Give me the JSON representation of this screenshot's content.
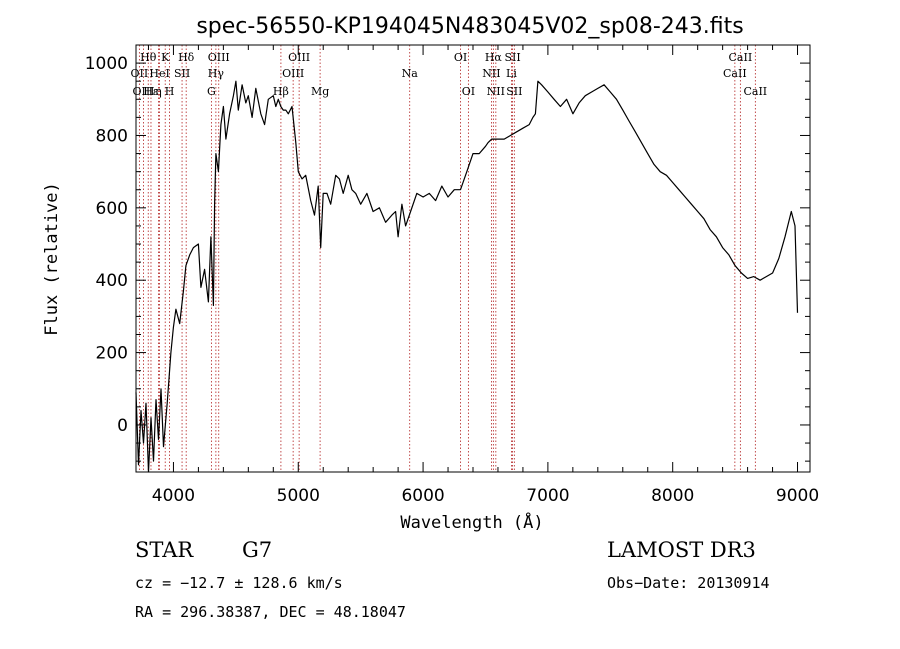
{
  "chart_data": {
    "type": "line",
    "title": "spec-56550-KP194045N483045V02_sp08-243.fits",
    "xlabel": "Wavelength (Å)",
    "ylabel": "Flux (relative)",
    "xlim": [
      3700,
      9100
    ],
    "ylim": [
      -130,
      1050
    ],
    "xticks": [
      4000,
      5000,
      6000,
      7000,
      8000,
      9000
    ],
    "yticks": [
      0,
      200,
      400,
      600,
      800,
      1000
    ],
    "grid": false,
    "series": [
      {
        "x": [
          3700,
          3720,
          3740,
          3760,
          3780,
          3800,
          3820,
          3840,
          3860,
          3880,
          3900,
          3920,
          3950,
          3980,
          4000,
          4020,
          4050,
          4080,
          4100,
          4130,
          4160,
          4200,
          4220,
          4250,
          4280,
          4300,
          4320,
          4330,
          4340,
          4360,
          4380,
          4400,
          4420,
          4450,
          4480,
          4500,
          4520,
          4550,
          4580,
          4600,
          4630,
          4660,
          4700,
          4730,
          4760,
          4800,
          4820,
          4840,
          4860,
          4880,
          4900,
          4920,
          4950,
          4980,
          5000,
          5030,
          5060,
          5100,
          5130,
          5160,
          5180,
          5200,
          5230,
          5260,
          5300,
          5330,
          5360,
          5400,
          5430,
          5460,
          5500,
          5550,
          5600,
          5650,
          5700,
          5750,
          5780,
          5800,
          5830,
          5860,
          5900,
          5950,
          6000,
          6050,
          6100,
          6150,
          6200,
          6250,
          6300,
          6350,
          6400,
          6450,
          6500,
          6520,
          6550,
          6600,
          6650,
          6700,
          6750,
          6800,
          6850,
          6880,
          6900,
          6920,
          6950,
          7000,
          7050,
          7100,
          7150,
          7200,
          7250,
          7300,
          7350,
          7400,
          7450,
          7500,
          7550,
          7600,
          7650,
          7700,
          7750,
          7800,
          7850,
          7900,
          7950,
          8000,
          8050,
          8100,
          8150,
          8200,
          8250,
          8300,
          8350,
          8400,
          8450,
          8500,
          8550,
          8600,
          8650,
          8700,
          8750,
          8800,
          8850,
          8900,
          8950,
          8980,
          9000
        ],
        "y": [
          90,
          -110,
          40,
          -50,
          60,
          -130,
          20,
          -100,
          70,
          -40,
          100,
          -60,
          60,
          200,
          270,
          320,
          280,
          370,
          440,
          470,
          490,
          500,
          380,
          430,
          340,
          520,
          330,
          610,
          750,
          700,
          830,
          880,
          790,
          860,
          910,
          950,
          870,
          940,
          890,
          910,
          850,
          930,
          860,
          830,
          900,
          910,
          880,
          900,
          880,
          870,
          870,
          860,
          880,
          780,
          700,
          680,
          690,
          620,
          580,
          660,
          490,
          640,
          640,
          610,
          690,
          680,
          640,
          690,
          650,
          640,
          610,
          640,
          590,
          600,
          560,
          580,
          590,
          520,
          610,
          550,
          590,
          640,
          630,
          640,
          620,
          660,
          630,
          650,
          650,
          700,
          750,
          750,
          770,
          780,
          790,
          790,
          790,
          800,
          810,
          820,
          830,
          850,
          860,
          950,
          940,
          920,
          900,
          880,
          900,
          860,
          890,
          910,
          920,
          930,
          940,
          920,
          900,
          870,
          840,
          810,
          780,
          750,
          720,
          700,
          690,
          670,
          650,
          630,
          610,
          590,
          570,
          540,
          520,
          490,
          470,
          440,
          420,
          405,
          410,
          400,
          410,
          420,
          460,
          520,
          590,
          550,
          310
        ]
      }
    ],
    "emission_lines": [
      {
        "label": "Hθ",
        "x": 3798,
        "row": 1
      },
      {
        "label": "OII",
        "x": 3727,
        "row": 2
      },
      {
        "label": "HeI",
        "x": 3889,
        "row": 2
      },
      {
        "label": "OIII",
        "x": 3760,
        "row": 3
      },
      {
        "label": "Hε",
        "x": 3820,
        "row": 3
      },
      {
        "label": "K",
        "x": 3934,
        "row": 1
      },
      {
        "label": "SII",
        "x": 4069,
        "row": 2
      },
      {
        "label": "η",
        "x": 3880,
        "row": 3
      },
      {
        "label": "H",
        "x": 3969,
        "row": 3
      },
      {
        "label": "Hδ",
        "x": 4102,
        "row": 1
      },
      {
        "label": "OIII",
        "x": 4363,
        "row": 1
      },
      {
        "label": "Hγ",
        "x": 4340,
        "row": 2
      },
      {
        "label": "G",
        "x": 4304,
        "row": 3
      },
      {
        "label": "OIII",
        "x": 5007,
        "row": 1
      },
      {
        "label": "OIII",
        "x": 4959,
        "row": 2
      },
      {
        "label": "Hβ",
        "x": 4861,
        "row": 3
      },
      {
        "label": "Mg",
        "x": 5175,
        "row": 3
      },
      {
        "label": "Na",
        "x": 5893,
        "row": 2
      },
      {
        "label": "OI",
        "x": 6300,
        "row": 1
      },
      {
        "label": "OI",
        "x": 6363,
        "row": 3
      },
      {
        "label": "Hα",
        "x": 6563,
        "row": 1
      },
      {
        "label": "SII",
        "x": 6717,
        "row": 1
      },
      {
        "label": "NII",
        "x": 6548,
        "row": 2
      },
      {
        "label": "Li",
        "x": 6708,
        "row": 2
      },
      {
        "label": "NII",
        "x": 6583,
        "row": 3
      },
      {
        "label": "SII",
        "x": 6731,
        "row": 3
      },
      {
        "label": "CaII",
        "x": 8542,
        "row": 1
      },
      {
        "label": "CaII",
        "x": 8498,
        "row": 2
      },
      {
        "label": "CaII",
        "x": 8662,
        "row": 3
      }
    ]
  },
  "info": {
    "object_class": "STAR",
    "subclass": "G7",
    "survey": "LAMOST DR3",
    "cz": "cz = −12.7 ± 128.6 km/s",
    "obs_date": "Obs−Date: 20130914",
    "coords": "RA = 296.38387, DEC =  48.18047"
  }
}
